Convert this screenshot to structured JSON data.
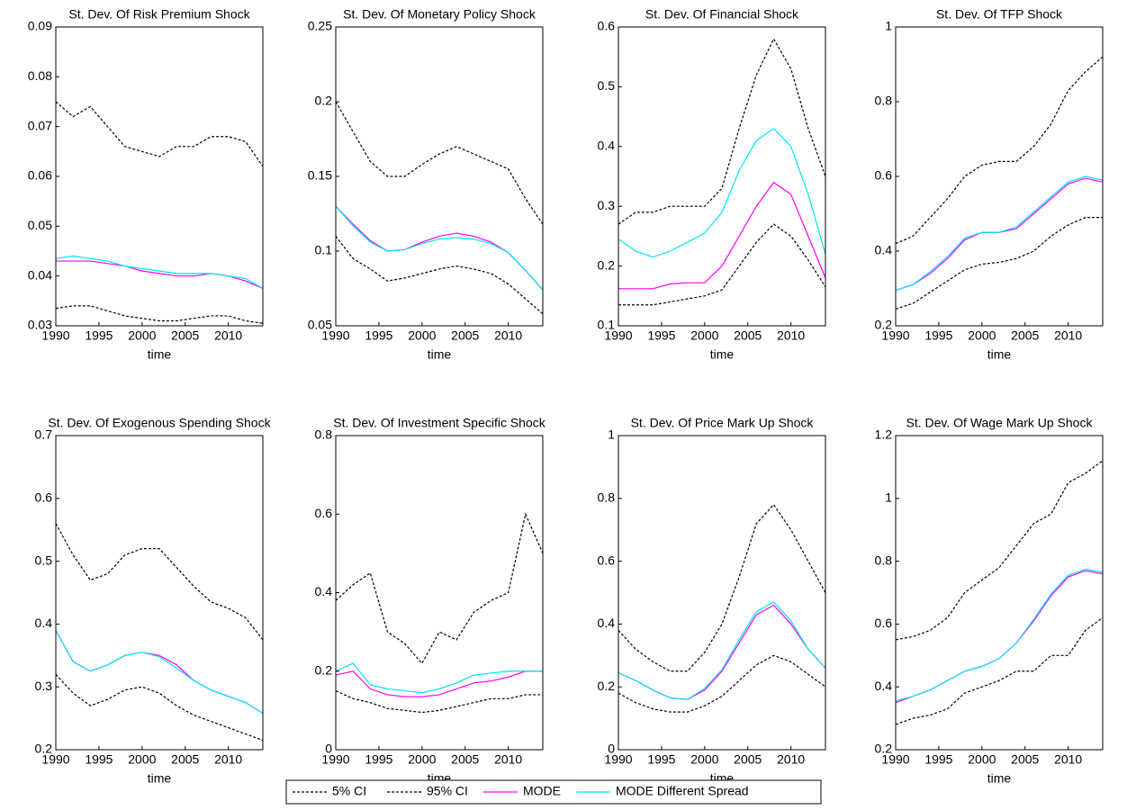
{
  "legend": [
    {
      "name": "5% CI",
      "color": "#000000",
      "dash": "3,2"
    },
    {
      "name": "95% CI",
      "color": "#000000",
      "dash": "3,2"
    },
    {
      "name": "MODE",
      "color": "#ff00ff",
      "dash": "none"
    },
    {
      "name": "MODE Different Spread",
      "color": "#00e5ee",
      "dash": "none"
    }
  ],
  "chart_data": [
    {
      "type": "line",
      "title": "St. Dev. Of Risk Premium Shock",
      "xlabel": "time",
      "x": [
        1990,
        1992,
        1994,
        1996,
        1998,
        2000,
        2002,
        2004,
        2006,
        2008,
        2010,
        2012,
        2014
      ],
      "xlim": [
        1990,
        2014
      ],
      "xticks": [
        1990,
        1995,
        2000,
        2005,
        2010
      ],
      "ylim": [
        0.03,
        0.09
      ],
      "yticks": [
        0.03,
        0.04,
        0.05,
        0.06,
        0.07,
        0.08,
        0.09
      ],
      "series": [
        {
          "values": [
            0.0335,
            0.034,
            0.034,
            0.033,
            0.032,
            0.0315,
            0.031,
            0.031,
            0.0315,
            0.032,
            0.032,
            0.031,
            0.0305
          ]
        },
        {
          "values": [
            0.075,
            0.072,
            0.074,
            0.07,
            0.066,
            0.065,
            0.064,
            0.066,
            0.066,
            0.068,
            0.068,
            0.067,
            0.062
          ]
        },
        {
          "values": [
            0.043,
            0.043,
            0.043,
            0.0425,
            0.042,
            0.041,
            0.0405,
            0.04,
            0.04,
            0.0405,
            0.04,
            0.039,
            0.0375
          ]
        },
        {
          "values": [
            0.0435,
            0.044,
            0.0435,
            0.043,
            0.042,
            0.0415,
            0.041,
            0.0405,
            0.0405,
            0.0405,
            0.04,
            0.0395,
            0.0375
          ]
        }
      ]
    },
    {
      "type": "line",
      "title": "St. Dev. Of Monetary Policy Shock",
      "xlabel": "time",
      "x": [
        1990,
        1992,
        1994,
        1996,
        1998,
        2000,
        2002,
        2004,
        2006,
        2008,
        2010,
        2012,
        2014
      ],
      "xlim": [
        1990,
        2014
      ],
      "xticks": [
        1990,
        1995,
        2000,
        2005,
        2010
      ],
      "ylim": [
        0.05,
        0.25
      ],
      "yticks": [
        0.05,
        0.1,
        0.15,
        0.2,
        0.25
      ],
      "series": [
        {
          "values": [
            0.11,
            0.095,
            0.088,
            0.08,
            0.082,
            0.085,
            0.088,
            0.09,
            0.088,
            0.085,
            0.078,
            0.068,
            0.058
          ]
        },
        {
          "values": [
            0.2,
            0.18,
            0.16,
            0.15,
            0.15,
            0.158,
            0.165,
            0.17,
            0.165,
            0.16,
            0.155,
            0.135,
            0.118
          ]
        },
        {
          "values": [
            0.13,
            0.118,
            0.107,
            0.1,
            0.101,
            0.106,
            0.11,
            0.112,
            0.11,
            0.106,
            0.099,
            0.087,
            0.074
          ]
        },
        {
          "values": [
            0.13,
            0.117,
            0.106,
            0.1,
            0.101,
            0.105,
            0.108,
            0.109,
            0.108,
            0.105,
            0.099,
            0.087,
            0.074
          ]
        }
      ]
    },
    {
      "type": "line",
      "title": "St. Dev. Of Financial Shock",
      "xlabel": "time",
      "x": [
        1990,
        1992,
        1994,
        1996,
        1998,
        2000,
        2002,
        2004,
        2006,
        2008,
        2010,
        2012,
        2014
      ],
      "xlim": [
        1990,
        2014
      ],
      "xticks": [
        1990,
        1995,
        2000,
        2005,
        2010
      ],
      "ylim": [
        0.1,
        0.6
      ],
      "yticks": [
        0.1,
        0.2,
        0.3,
        0.4,
        0.5,
        0.6
      ],
      "series": [
        {
          "values": [
            0.135,
            0.135,
            0.135,
            0.14,
            0.145,
            0.15,
            0.16,
            0.2,
            0.24,
            0.27,
            0.25,
            0.21,
            0.165
          ]
        },
        {
          "values": [
            0.27,
            0.29,
            0.29,
            0.3,
            0.3,
            0.3,
            0.33,
            0.43,
            0.52,
            0.58,
            0.53,
            0.43,
            0.35
          ]
        },
        {
          "values": [
            0.162,
            0.162,
            0.162,
            0.17,
            0.172,
            0.172,
            0.2,
            0.25,
            0.3,
            0.34,
            0.32,
            0.25,
            0.18
          ]
        },
        {
          "values": [
            0.245,
            0.225,
            0.215,
            0.225,
            0.24,
            0.255,
            0.29,
            0.36,
            0.41,
            0.43,
            0.4,
            0.32,
            0.22
          ]
        }
      ]
    },
    {
      "type": "line",
      "title": "St. Dev. Of TFP Shock",
      "xlabel": "time",
      "x": [
        1990,
        1992,
        1994,
        1996,
        1998,
        2000,
        2002,
        2004,
        2006,
        2008,
        2010,
        2012,
        2014
      ],
      "xlim": [
        1990,
        2014
      ],
      "xticks": [
        1990,
        1995,
        2000,
        2005,
        2010
      ],
      "ylim": [
        0.2,
        1
      ],
      "yticks": [
        0.2,
        0.4,
        0.6,
        0.8,
        1
      ],
      "series": [
        {
          "values": [
            0.245,
            0.26,
            0.29,
            0.32,
            0.35,
            0.365,
            0.37,
            0.38,
            0.4,
            0.44,
            0.47,
            0.49,
            0.49
          ]
        },
        {
          "values": [
            0.42,
            0.44,
            0.49,
            0.54,
            0.6,
            0.63,
            0.64,
            0.64,
            0.68,
            0.74,
            0.83,
            0.88,
            0.92
          ]
        },
        {
          "values": [
            0.295,
            0.31,
            0.34,
            0.38,
            0.43,
            0.45,
            0.45,
            0.46,
            0.5,
            0.54,
            0.58,
            0.595,
            0.585
          ]
        },
        {
          "values": [
            0.295,
            0.31,
            0.345,
            0.385,
            0.435,
            0.45,
            0.45,
            0.465,
            0.505,
            0.545,
            0.585,
            0.6,
            0.59
          ]
        }
      ]
    },
    {
      "type": "line",
      "title": "St. Dev. Of Exogenous Spending Shock",
      "xlabel": "time",
      "x": [
        1990,
        1992,
        1994,
        1996,
        1998,
        2000,
        2002,
        2004,
        2006,
        2008,
        2010,
        2012,
        2014
      ],
      "xlim": [
        1990,
        2014
      ],
      "xticks": [
        1990,
        1995,
        2000,
        2005,
        2010
      ],
      "ylim": [
        0.2,
        0.7
      ],
      "yticks": [
        0.2,
        0.3,
        0.4,
        0.5,
        0.6,
        0.7
      ],
      "series": [
        {
          "values": [
            0.32,
            0.29,
            0.27,
            0.28,
            0.295,
            0.3,
            0.29,
            0.27,
            0.255,
            0.245,
            0.235,
            0.225,
            0.215
          ]
        },
        {
          "values": [
            0.56,
            0.51,
            0.47,
            0.48,
            0.51,
            0.52,
            0.52,
            0.49,
            0.46,
            0.435,
            0.425,
            0.41,
            0.375
          ]
        },
        {
          "values": [
            0.39,
            0.34,
            0.325,
            0.335,
            0.35,
            0.355,
            0.35,
            0.335,
            0.31,
            0.295,
            0.285,
            0.275,
            0.258
          ]
        },
        {
          "values": [
            0.39,
            0.34,
            0.325,
            0.335,
            0.35,
            0.355,
            0.348,
            0.33,
            0.31,
            0.295,
            0.285,
            0.275,
            0.258
          ]
        }
      ]
    },
    {
      "type": "line",
      "title": "St. Dev. Of Investment Specific Shock",
      "xlabel": "time",
      "x": [
        1990,
        1992,
        1994,
        1996,
        1998,
        2000,
        2002,
        2004,
        2006,
        2008,
        2010,
        2012,
        2014
      ],
      "xlim": [
        1990,
        2014
      ],
      "xticks": [
        1990,
        1995,
        2000,
        2005,
        2010
      ],
      "ylim": [
        0,
        0.8
      ],
      "yticks": [
        0,
        0.2,
        0.4,
        0.6,
        0.8
      ],
      "series": [
        {
          "values": [
            0.15,
            0.13,
            0.12,
            0.105,
            0.1,
            0.095,
            0.1,
            0.11,
            0.12,
            0.13,
            0.13,
            0.14,
            0.14
          ]
        },
        {
          "values": [
            0.38,
            0.42,
            0.45,
            0.3,
            0.27,
            0.22,
            0.3,
            0.28,
            0.35,
            0.38,
            0.4,
            0.6,
            0.5
          ]
        },
        {
          "values": [
            0.19,
            0.2,
            0.155,
            0.14,
            0.135,
            0.135,
            0.14,
            0.155,
            0.17,
            0.175,
            0.185,
            0.2,
            0.2
          ]
        },
        {
          "values": [
            0.2,
            0.22,
            0.165,
            0.155,
            0.15,
            0.145,
            0.155,
            0.17,
            0.19,
            0.195,
            0.2,
            0.2,
            0.2
          ]
        }
      ]
    },
    {
      "type": "line",
      "title": "St. Dev. Of Price Mark Up Shock",
      "xlabel": "time",
      "x": [
        1990,
        1992,
        1994,
        1996,
        1998,
        2000,
        2002,
        2004,
        2006,
        2008,
        2010,
        2012,
        2014
      ],
      "xlim": [
        1990,
        2014
      ],
      "xticks": [
        1990,
        1995,
        2000,
        2005,
        2010
      ],
      "ylim": [
        0,
        1
      ],
      "yticks": [
        0,
        0.2,
        0.4,
        0.6,
        0.8,
        1
      ],
      "series": [
        {
          "values": [
            0.18,
            0.15,
            0.13,
            0.12,
            0.12,
            0.14,
            0.17,
            0.22,
            0.27,
            0.3,
            0.28,
            0.24,
            0.2
          ]
        },
        {
          "values": [
            0.38,
            0.32,
            0.28,
            0.25,
            0.25,
            0.31,
            0.4,
            0.55,
            0.72,
            0.78,
            0.7,
            0.6,
            0.5
          ]
        },
        {
          "values": [
            0.245,
            0.22,
            0.19,
            0.165,
            0.16,
            0.19,
            0.25,
            0.34,
            0.43,
            0.46,
            0.4,
            0.32,
            0.26
          ]
        },
        {
          "values": [
            0.245,
            0.22,
            0.19,
            0.165,
            0.16,
            0.195,
            0.255,
            0.35,
            0.44,
            0.47,
            0.41,
            0.32,
            0.26
          ]
        }
      ]
    },
    {
      "type": "line",
      "title": "St. Dev. Of Wage Mark Up Shock",
      "xlabel": "time",
      "x": [
        1990,
        1992,
        1994,
        1996,
        1998,
        2000,
        2002,
        2004,
        2006,
        2008,
        2010,
        2012,
        2014
      ],
      "xlim": [
        1990,
        2014
      ],
      "xticks": [
        1990,
        1995,
        2000,
        2005,
        2010
      ],
      "ylim": [
        0.2,
        1.2
      ],
      "yticks": [
        0.2,
        0.4,
        0.6,
        0.8,
        1,
        1.2
      ],
      "series": [
        {
          "values": [
            0.28,
            0.3,
            0.31,
            0.33,
            0.38,
            0.4,
            0.42,
            0.45,
            0.45,
            0.5,
            0.5,
            0.58,
            0.62
          ]
        },
        {
          "values": [
            0.55,
            0.56,
            0.58,
            0.62,
            0.7,
            0.74,
            0.78,
            0.85,
            0.92,
            0.95,
            1.05,
            1.08,
            1.12
          ]
        },
        {
          "values": [
            0.35,
            0.37,
            0.39,
            0.42,
            0.45,
            0.465,
            0.49,
            0.54,
            0.61,
            0.69,
            0.75,
            0.77,
            0.76
          ]
        },
        {
          "values": [
            0.355,
            0.37,
            0.39,
            0.42,
            0.45,
            0.465,
            0.49,
            0.54,
            0.615,
            0.695,
            0.755,
            0.775,
            0.765
          ]
        }
      ]
    }
  ]
}
